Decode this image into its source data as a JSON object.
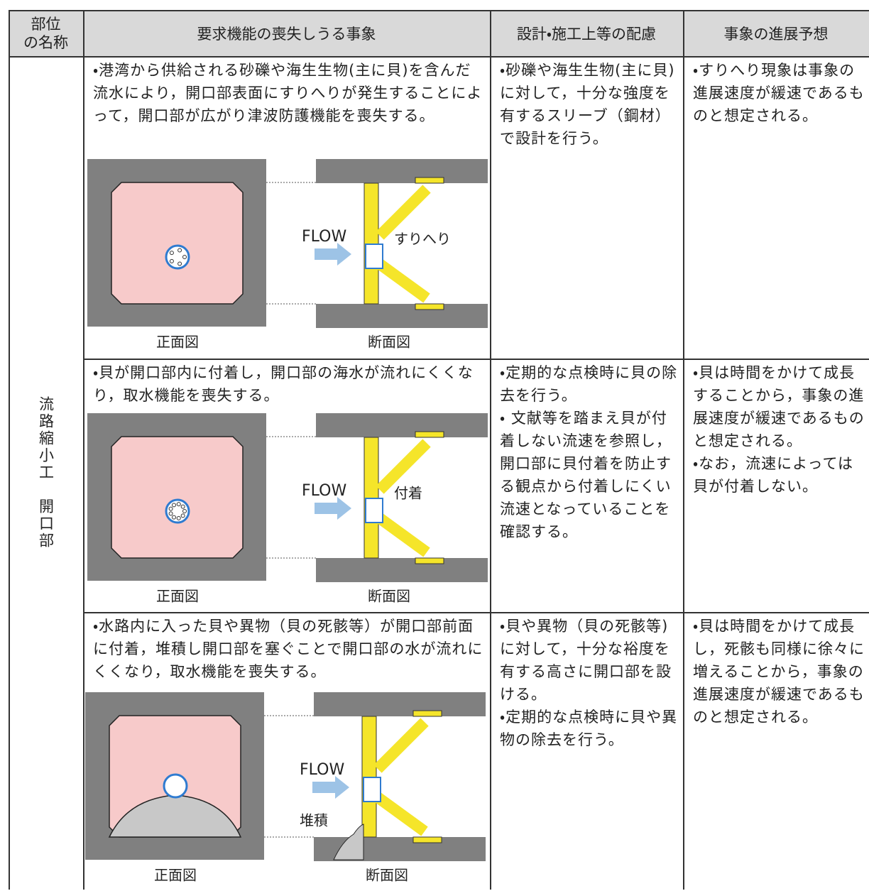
{
  "header": {
    "part_name": [
      "部位",
      "の名称"
    ],
    "event": "要求機能の喪失しうる事象",
    "design": "設計・施工上等の配慮",
    "progression": "事象の進展予想"
  },
  "part": "流路縮小工　開口部",
  "rows": [
    {
      "event": "・港湾から供給される砂礫や海生生物(主に貝)を含んだ流水により，開口部表面にすりへりが発生することによって，開口部が広がり津波防護機能を喪失する。",
      "figure": {
        "flow": "FLOW",
        "annotation": "すりへり",
        "front": "正面図",
        "section": "断面図"
      },
      "design": [
        "・砂礫や海生生物(主に貝)に対して，十分な強度を有するスリーブ（鋼材）で設計を行う。"
      ],
      "progression": [
        "・すりへり現象は事象の進展速度が緩速であるものと想定される。"
      ]
    },
    {
      "event": "・貝が開口部内に付着し，開口部の海水が流れにくくなり，取水機能を喪失する。",
      "figure": {
        "flow": "FLOW",
        "annotation": "付着",
        "front": "正面図",
        "section": "断面図"
      },
      "design": [
        "・定期的な点検時に貝の除去を行う。",
        "・ 文献等を踏まえ貝が付着しない流速を参照し，開口部に貝付着を防止する観点から付着しにくい流速となっていることを確認する。"
      ],
      "progression": [
        "・貝は時間をかけて成長することから，事象の進展速度が緩速であるものと想定される。",
        "・なお，流速によっては貝が付着しない。"
      ]
    },
    {
      "event": "・水路内に入った貝や異物（貝の死骸等）が開口部前面に付着，堆積し開口部を塞ぐことで開口部の水が流れにくくなり，取水機能を喪失する。",
      "figure": {
        "flow": "FLOW",
        "annotation": "堆積",
        "front": "正面図",
        "section": "断面図"
      },
      "design": [
        "・貝や異物（貝の死骸等)に対して，十分な裕度を有する高さに開口部を設ける。",
        "・定期的な点検時に貝や異物の除去を行う。"
      ],
      "progression": [
        "・貝は時間をかけて成長し，死骸も同様に徐々に増えることから，事象の進展速度が緩速であるものと想定される。"
      ]
    }
  ]
}
